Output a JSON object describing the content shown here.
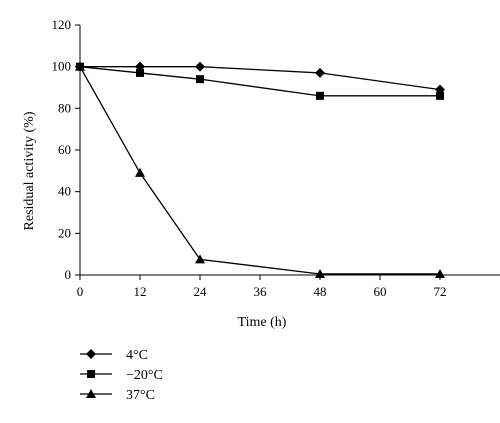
{
  "chart_data": {
    "type": "line",
    "title": "",
    "xlabel": "Time (h)",
    "ylabel": "Residual activity (%)",
    "xlim": [
      0,
      84
    ],
    "ylim": [
      0,
      120
    ],
    "xticks": [
      0,
      12,
      24,
      36,
      48,
      60,
      72
    ],
    "yticks": [
      0,
      20,
      40,
      60,
      80,
      100,
      120
    ],
    "grid": false,
    "legend_position": "bottom-left",
    "series": [
      {
        "name": "4°C",
        "marker": "diamond",
        "x": [
          0,
          12,
          24,
          48,
          72
        ],
        "y": [
          100,
          100,
          100,
          97,
          89
        ]
      },
      {
        "name": "−20°C",
        "marker": "square",
        "x": [
          0,
          12,
          24,
          48,
          72
        ],
        "y": [
          100,
          97,
          94,
          86,
          86
        ]
      },
      {
        "name": "37°C",
        "marker": "triangle",
        "x": [
          0,
          12,
          24,
          48,
          72
        ],
        "y": [
          100,
          49,
          7.5,
          0.5,
          0.5
        ]
      }
    ]
  }
}
